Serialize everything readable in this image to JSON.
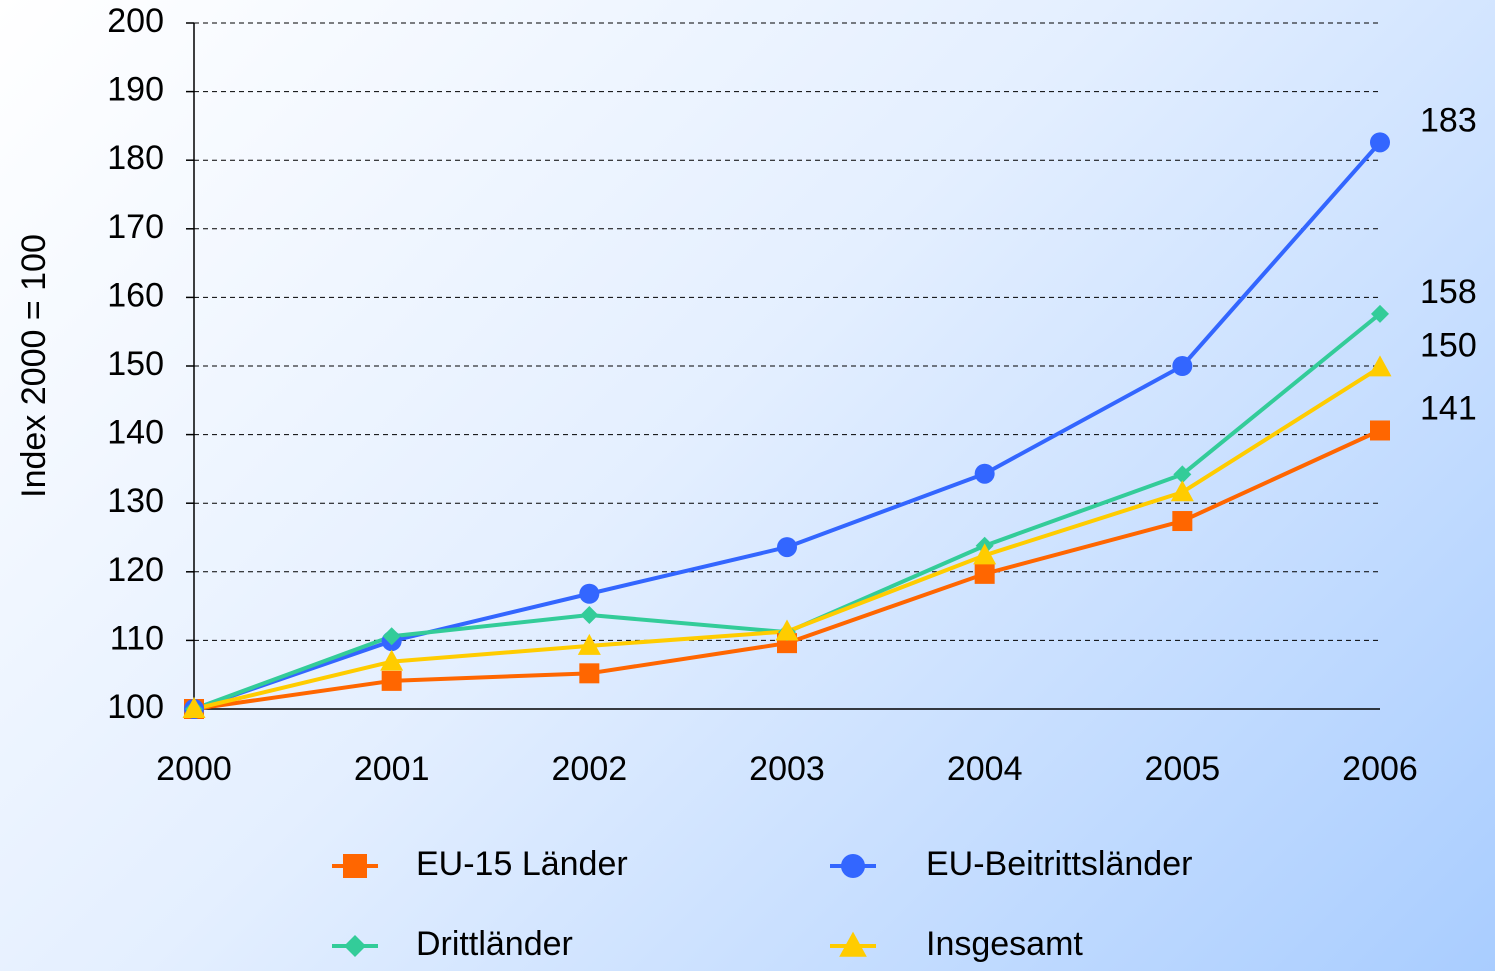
{
  "chart_data": {
    "type": "line",
    "y_label": "Index 2000 = 100",
    "categories": [
      "2000",
      "2001",
      "2002",
      "2003",
      "2004",
      "2005",
      "2006"
    ],
    "series": [
      {
        "name": "EU-15 Länder",
        "color": "#ff6600",
        "marker": "square",
        "values": [
          100,
          104.1,
          105.2,
          109.6,
          119.7,
          127.4,
          140.6
        ],
        "value_labels": [
          null,
          null,
          null,
          null,
          null,
          null,
          "141"
        ]
      },
      {
        "name": "EU-Beitrittsländer",
        "color": "#3366ff",
        "marker": "circle",
        "values": [
          100,
          109.9,
          116.8,
          123.6,
          134.3,
          150,
          182.6
        ],
        "value_labels": [
          null,
          null,
          null,
          null,
          null,
          null,
          "183"
        ]
      },
      {
        "name": "Drittländer",
        "color": "#33cc99",
        "marker": "diamond",
        "values": [
          100,
          110.6,
          113.7,
          111.2,
          123.8,
          134.2,
          157.6
        ],
        "value_labels": [
          null,
          null,
          null,
          null,
          null,
          null,
          "158"
        ]
      },
      {
        "name": "Insgesamt",
        "color": "#ffcc00",
        "marker": "triangle",
        "values": [
          100,
          106.9,
          109.2,
          111.3,
          122.4,
          131.6,
          149.8
        ],
        "value_labels": [
          null,
          null,
          null,
          null,
          null,
          null,
          "150"
        ]
      }
    ],
    "ylim": [
      100,
      200
    ],
    "yticks": [
      100,
      110,
      120,
      130,
      140,
      150,
      160,
      170,
      180,
      190,
      200
    ],
    "grid": true,
    "legend": "bottom"
  }
}
